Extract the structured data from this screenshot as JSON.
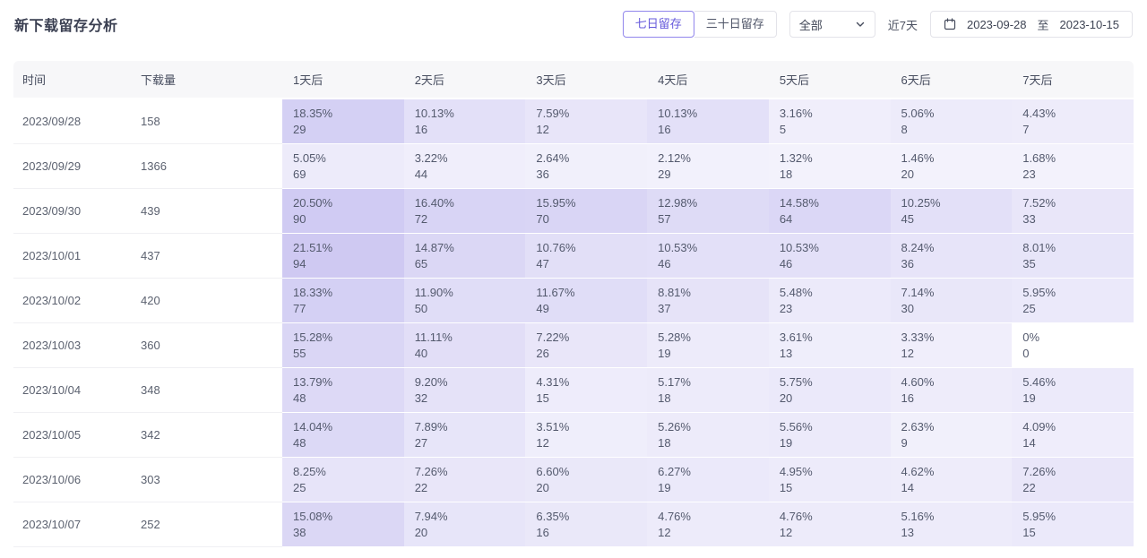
{
  "page": {
    "title": "新下载留存分析"
  },
  "controls": {
    "retention_tabs": [
      {
        "label": "七日留存",
        "active": true
      },
      {
        "label": "三十日留存",
        "active": false
      }
    ],
    "channel_select": {
      "value": "全部",
      "icon": "chevron-down-icon"
    },
    "quick_range_label": "近7天",
    "date_range": {
      "icon": "calendar-icon",
      "start": "2023-09-28",
      "separator": "至",
      "end": "2023-10-15"
    }
  },
  "table": {
    "columns": [
      "时间",
      "下载量",
      "1天后",
      "2天后",
      "3天后",
      "4天后",
      "5天后",
      "6天后",
      "7天后"
    ],
    "heat_base_color": "#6C5CD8",
    "max_rate_percent": 21.51,
    "rows": [
      {
        "date": "2023/09/28",
        "downloads": 158,
        "cells": [
          {
            "label": "18.35%",
            "rate": 18.35,
            "count": 29
          },
          {
            "label": "10.13%",
            "rate": 10.13,
            "count": 16
          },
          {
            "label": "7.59%",
            "rate": 7.59,
            "count": 12
          },
          {
            "label": "10.13%",
            "rate": 10.13,
            "count": 16
          },
          {
            "label": "3.16%",
            "rate": 3.16,
            "count": 5
          },
          {
            "label": "5.06%",
            "rate": 5.06,
            "count": 8
          },
          {
            "label": "4.43%",
            "rate": 4.43,
            "count": 7
          }
        ]
      },
      {
        "date": "2023/09/29",
        "downloads": 1366,
        "cells": [
          {
            "label": "5.05%",
            "rate": 5.05,
            "count": 69
          },
          {
            "label": "3.22%",
            "rate": 3.22,
            "count": 44
          },
          {
            "label": "2.64%",
            "rate": 2.64,
            "count": 36
          },
          {
            "label": "2.12%",
            "rate": 2.12,
            "count": 29
          },
          {
            "label": "1.32%",
            "rate": 1.32,
            "count": 18
          },
          {
            "label": "1.46%",
            "rate": 1.46,
            "count": 20
          },
          {
            "label": "1.68%",
            "rate": 1.68,
            "count": 23
          }
        ]
      },
      {
        "date": "2023/09/30",
        "downloads": 439,
        "cells": [
          {
            "label": "20.50%",
            "rate": 20.5,
            "count": 90
          },
          {
            "label": "16.40%",
            "rate": 16.4,
            "count": 72
          },
          {
            "label": "15.95%",
            "rate": 15.95,
            "count": 70
          },
          {
            "label": "12.98%",
            "rate": 12.98,
            "count": 57
          },
          {
            "label": "14.58%",
            "rate": 14.58,
            "count": 64
          },
          {
            "label": "10.25%",
            "rate": 10.25,
            "count": 45
          },
          {
            "label": "7.52%",
            "rate": 7.52,
            "count": 33
          }
        ]
      },
      {
        "date": "2023/10/01",
        "downloads": 437,
        "cells": [
          {
            "label": "21.51%",
            "rate": 21.51,
            "count": 94
          },
          {
            "label": "14.87%",
            "rate": 14.87,
            "count": 65
          },
          {
            "label": "10.76%",
            "rate": 10.76,
            "count": 47
          },
          {
            "label": "10.53%",
            "rate": 10.53,
            "count": 46
          },
          {
            "label": "10.53%",
            "rate": 10.53,
            "count": 46
          },
          {
            "label": "8.24%",
            "rate": 8.24,
            "count": 36
          },
          {
            "label": "8.01%",
            "rate": 8.01,
            "count": 35
          }
        ]
      },
      {
        "date": "2023/10/02",
        "downloads": 420,
        "cells": [
          {
            "label": "18.33%",
            "rate": 18.33,
            "count": 77
          },
          {
            "label": "11.90%",
            "rate": 11.9,
            "count": 50
          },
          {
            "label": "11.67%",
            "rate": 11.67,
            "count": 49
          },
          {
            "label": "8.81%",
            "rate": 8.81,
            "count": 37
          },
          {
            "label": "5.48%",
            "rate": 5.48,
            "count": 23
          },
          {
            "label": "7.14%",
            "rate": 7.14,
            "count": 30
          },
          {
            "label": "5.95%",
            "rate": 5.95,
            "count": 25
          }
        ]
      },
      {
        "date": "2023/10/03",
        "downloads": 360,
        "cells": [
          {
            "label": "15.28%",
            "rate": 15.28,
            "count": 55
          },
          {
            "label": "11.11%",
            "rate": 11.11,
            "count": 40
          },
          {
            "label": "7.22%",
            "rate": 7.22,
            "count": 26
          },
          {
            "label": "5.28%",
            "rate": 5.28,
            "count": 19
          },
          {
            "label": "3.61%",
            "rate": 3.61,
            "count": 13
          },
          {
            "label": "3.33%",
            "rate": 3.33,
            "count": 12
          },
          {
            "label": "0%",
            "rate": 0,
            "count": 0
          }
        ]
      },
      {
        "date": "2023/10/04",
        "downloads": 348,
        "cells": [
          {
            "label": "13.79%",
            "rate": 13.79,
            "count": 48
          },
          {
            "label": "9.20%",
            "rate": 9.2,
            "count": 32
          },
          {
            "label": "4.31%",
            "rate": 4.31,
            "count": 15
          },
          {
            "label": "5.17%",
            "rate": 5.17,
            "count": 18
          },
          {
            "label": "5.75%",
            "rate": 5.75,
            "count": 20
          },
          {
            "label": "4.60%",
            "rate": 4.6,
            "count": 16
          },
          {
            "label": "5.46%",
            "rate": 5.46,
            "count": 19
          }
        ]
      },
      {
        "date": "2023/10/05",
        "downloads": 342,
        "cells": [
          {
            "label": "14.04%",
            "rate": 14.04,
            "count": 48
          },
          {
            "label": "7.89%",
            "rate": 7.89,
            "count": 27
          },
          {
            "label": "3.51%",
            "rate": 3.51,
            "count": 12
          },
          {
            "label": "5.26%",
            "rate": 5.26,
            "count": 18
          },
          {
            "label": "5.56%",
            "rate": 5.56,
            "count": 19
          },
          {
            "label": "2.63%",
            "rate": 2.63,
            "count": 9
          },
          {
            "label": "4.09%",
            "rate": 4.09,
            "count": 14
          }
        ]
      },
      {
        "date": "2023/10/06",
        "downloads": 303,
        "cells": [
          {
            "label": "8.25%",
            "rate": 8.25,
            "count": 25
          },
          {
            "label": "7.26%",
            "rate": 7.26,
            "count": 22
          },
          {
            "label": "6.60%",
            "rate": 6.6,
            "count": 20
          },
          {
            "label": "6.27%",
            "rate": 6.27,
            "count": 19
          },
          {
            "label": "4.95%",
            "rate": 4.95,
            "count": 15
          },
          {
            "label": "4.62%",
            "rate": 4.62,
            "count": 14
          },
          {
            "label": "7.26%",
            "rate": 7.26,
            "count": 22
          }
        ]
      },
      {
        "date": "2023/10/07",
        "downloads": 252,
        "cells": [
          {
            "label": "15.08%",
            "rate": 15.08,
            "count": 38
          },
          {
            "label": "7.94%",
            "rate": 7.94,
            "count": 20
          },
          {
            "label": "6.35%",
            "rate": 6.35,
            "count": 16
          },
          {
            "label": "4.76%",
            "rate": 4.76,
            "count": 12
          },
          {
            "label": "4.76%",
            "rate": 4.76,
            "count": 12
          },
          {
            "label": "5.16%",
            "rate": 5.16,
            "count": 13
          },
          {
            "label": "5.95%",
            "rate": 5.95,
            "count": 15
          }
        ]
      }
    ]
  }
}
